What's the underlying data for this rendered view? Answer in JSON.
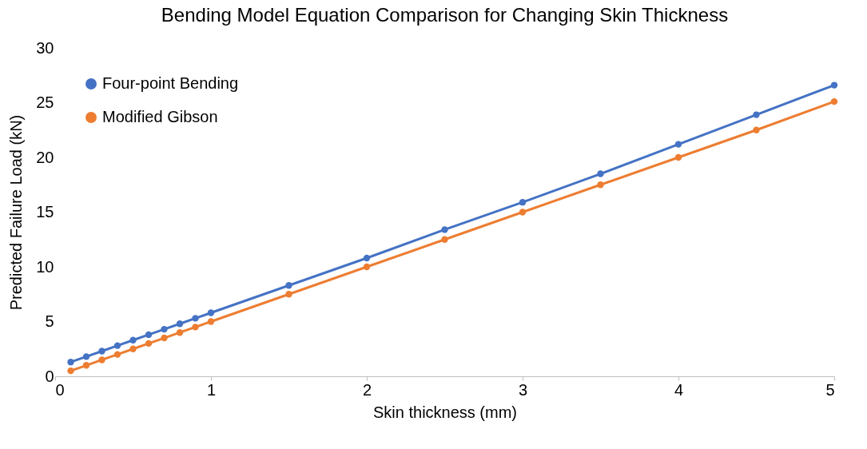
{
  "chart_data": {
    "type": "line",
    "title": "Bending Model Equation Comparison for Changing Skin Thickness",
    "xlabel": "Skin thickness (mm)",
    "ylabel": "Predicted Failure Load (kN)",
    "x": [
      0.1,
      0.2,
      0.3,
      0.4,
      0.5,
      0.6,
      0.7,
      0.8,
      0.9,
      1,
      1.5,
      2,
      2.5,
      3,
      3.5,
      4,
      4.5,
      5
    ],
    "series": [
      {
        "name": "Four-point Bending",
        "color": "#4472c4",
        "values": [
          1.3,
          1.8,
          2.3,
          2.8,
          3.3,
          3.8,
          4.3,
          4.8,
          5.3,
          5.8,
          8.3,
          10.8,
          13.4,
          15.9,
          18.5,
          21.2,
          23.9,
          26.6
        ]
      },
      {
        "name": "Modified Gibson",
        "color": "#ed7d31",
        "values": [
          0.5,
          1.0,
          1.5,
          2.0,
          2.5,
          3.0,
          3.5,
          4.0,
          4.5,
          5.0,
          7.5,
          10.0,
          12.5,
          15.0,
          17.5,
          20.0,
          22.5,
          25.1
        ]
      }
    ],
    "xlim": [
      0,
      5
    ],
    "xticks": [
      0,
      1,
      2,
      3,
      4,
      5
    ],
    "ylim": [
      0,
      30
    ],
    "yticks": [
      0,
      5,
      10,
      15,
      20,
      25,
      30
    ],
    "grid": false,
    "legend": "top left",
    "marker": "circle",
    "line_style": "solid"
  }
}
